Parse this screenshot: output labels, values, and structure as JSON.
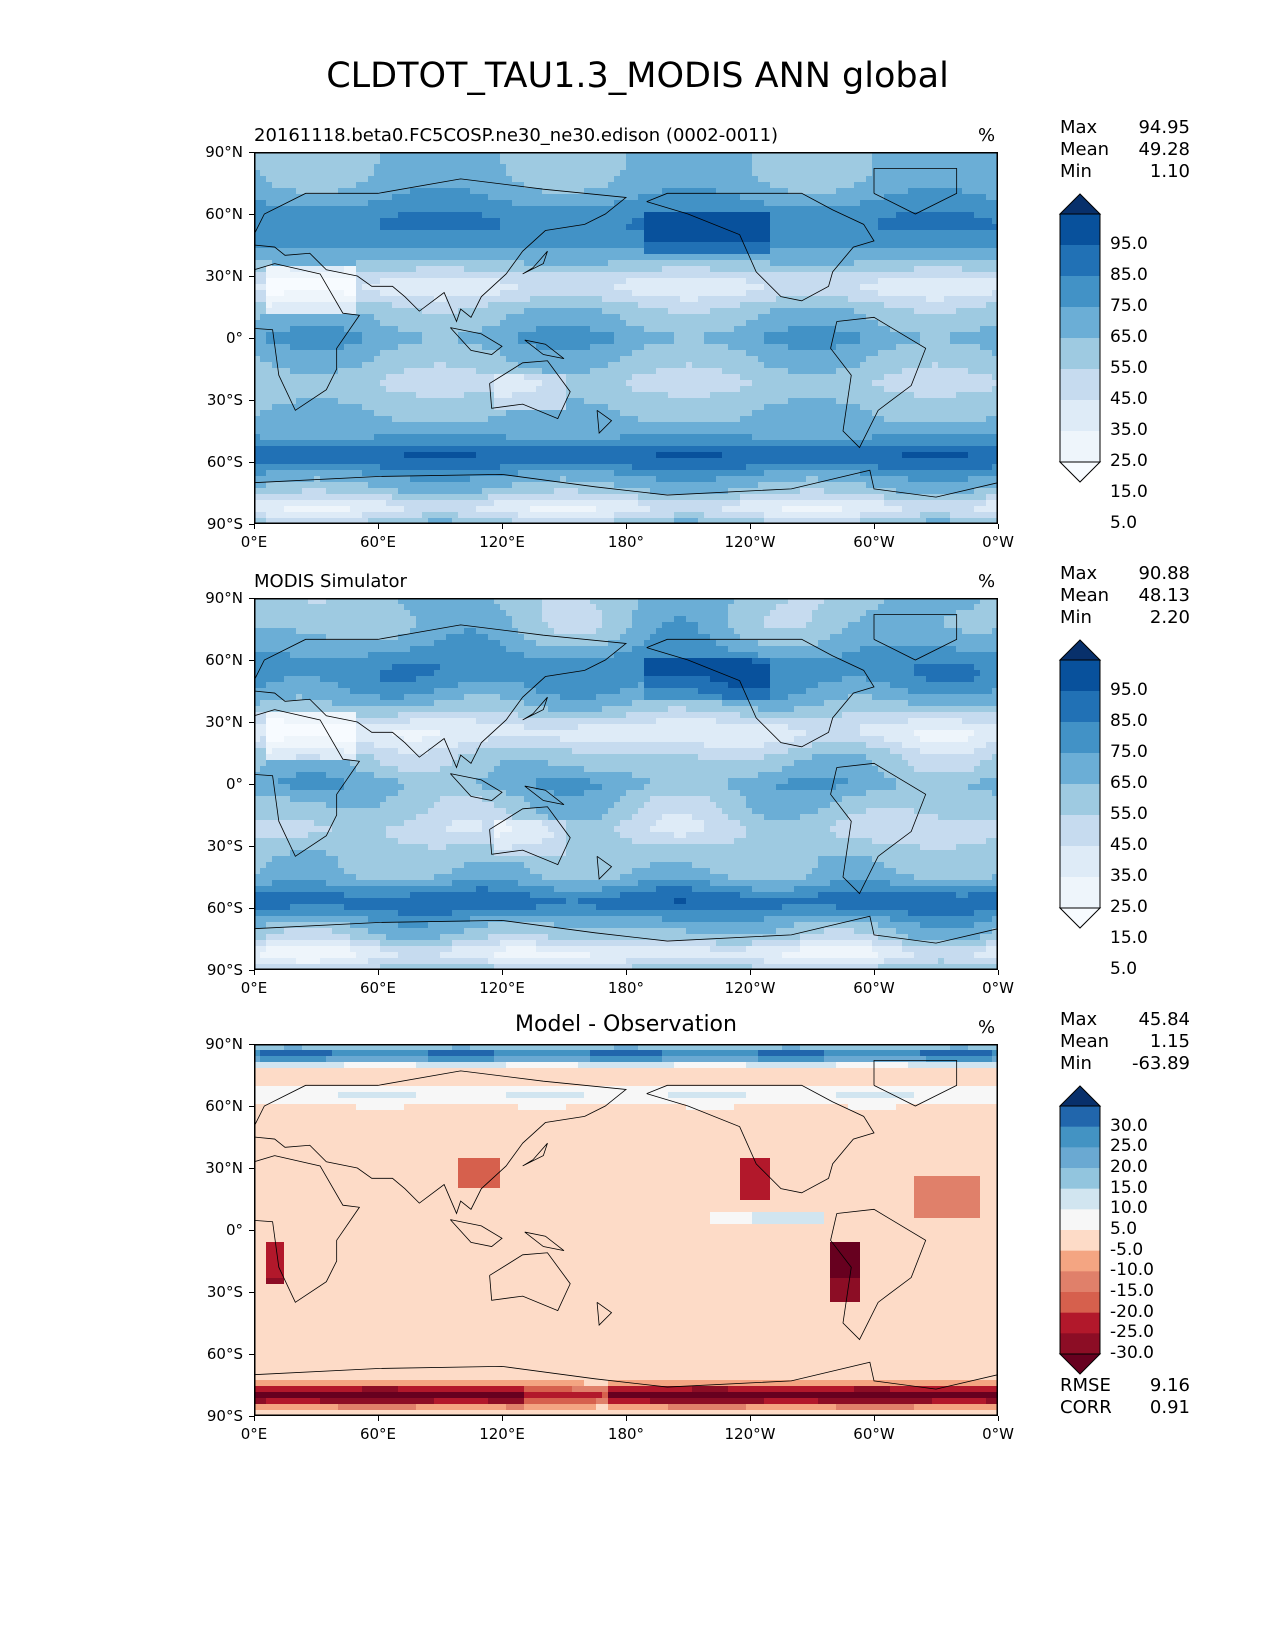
{
  "figure_title": "CLDTOT_TAU1.3_MODIS ANN global",
  "chart_data": [
    {
      "type": "heatmap",
      "title": "20161118.beta0.FC5COSP.ne30_ne30.edison (0002-0011)",
      "units": "%",
      "x_ticks": [
        "0°E",
        "60°E",
        "120°E",
        "180°",
        "120°W",
        "60°W",
        "0°W"
      ],
      "y_ticks": [
        "90°N",
        "60°N",
        "30°N",
        "0°",
        "30°S",
        "60°S",
        "90°S"
      ],
      "stats": {
        "max_label": "Max",
        "max": "94.95",
        "mean_label": "Mean",
        "mean": "49.28",
        "min_label": "Min",
        "min": "1.10"
      },
      "colorbar_levels": [
        "95.0",
        "85.0",
        "75.0",
        "65.0",
        "55.0",
        "45.0",
        "35.0",
        "25.0",
        "15.0",
        "5.0"
      ],
      "colormap": [
        "#08306b",
        "#08519c",
        "#2171b5",
        "#4292c6",
        "#6baed6",
        "#9ecae1",
        "#c6dbef",
        "#deebf7",
        "#eef5fb",
        "#f7fbff"
      ]
    },
    {
      "type": "heatmap",
      "title": "MODIS Simulator",
      "units": "%",
      "x_ticks": [
        "0°E",
        "60°E",
        "120°E",
        "180°",
        "120°W",
        "60°W",
        "0°W"
      ],
      "y_ticks": [
        "90°N",
        "60°N",
        "30°N",
        "0°",
        "30°S",
        "60°S",
        "90°S"
      ],
      "stats": {
        "max_label": "Max",
        "max": "90.88",
        "mean_label": "Mean",
        "mean": "48.13",
        "min_label": "Min",
        "min": "2.20"
      },
      "colorbar_levels": [
        "95.0",
        "85.0",
        "75.0",
        "65.0",
        "55.0",
        "45.0",
        "35.0",
        "25.0",
        "15.0",
        "5.0"
      ],
      "colormap": [
        "#08306b",
        "#08519c",
        "#2171b5",
        "#4292c6",
        "#6baed6",
        "#9ecae1",
        "#c6dbef",
        "#deebf7",
        "#eef5fb",
        "#f7fbff"
      ]
    },
    {
      "type": "heatmap",
      "title": "Model - Observation",
      "units": "%",
      "x_ticks": [
        "0°E",
        "60°E",
        "120°E",
        "180°",
        "120°W",
        "60°W",
        "0°W"
      ],
      "y_ticks": [
        "90°N",
        "60°N",
        "30°N",
        "0°",
        "30°S",
        "60°S",
        "90°S"
      ],
      "stats": {
        "max_label": "Max",
        "max": "45.84",
        "mean_label": "Mean",
        "mean": "1.15",
        "min_label": "Min",
        "min": "-63.89"
      },
      "colorbar_levels": [
        "30.0",
        "25.0",
        "20.0",
        "15.0",
        "10.0",
        "5.0",
        "-5.0",
        "-10.0",
        "-15.0",
        "-20.0",
        "-25.0",
        "-30.0"
      ],
      "colormap": [
        "#08306b",
        "#2166ac",
        "#4393c3",
        "#6aa9d2",
        "#92c5de",
        "#d1e5f0",
        "#f7f7f7",
        "#fddbc7",
        "#f4a582",
        "#e0806a",
        "#d6604d",
        "#b2182b",
        "#8c0d25",
        "#67001f"
      ],
      "rmse_label": "RMSE",
      "rmse": "9.16",
      "corr_label": "CORR",
      "corr": "0.91"
    }
  ]
}
